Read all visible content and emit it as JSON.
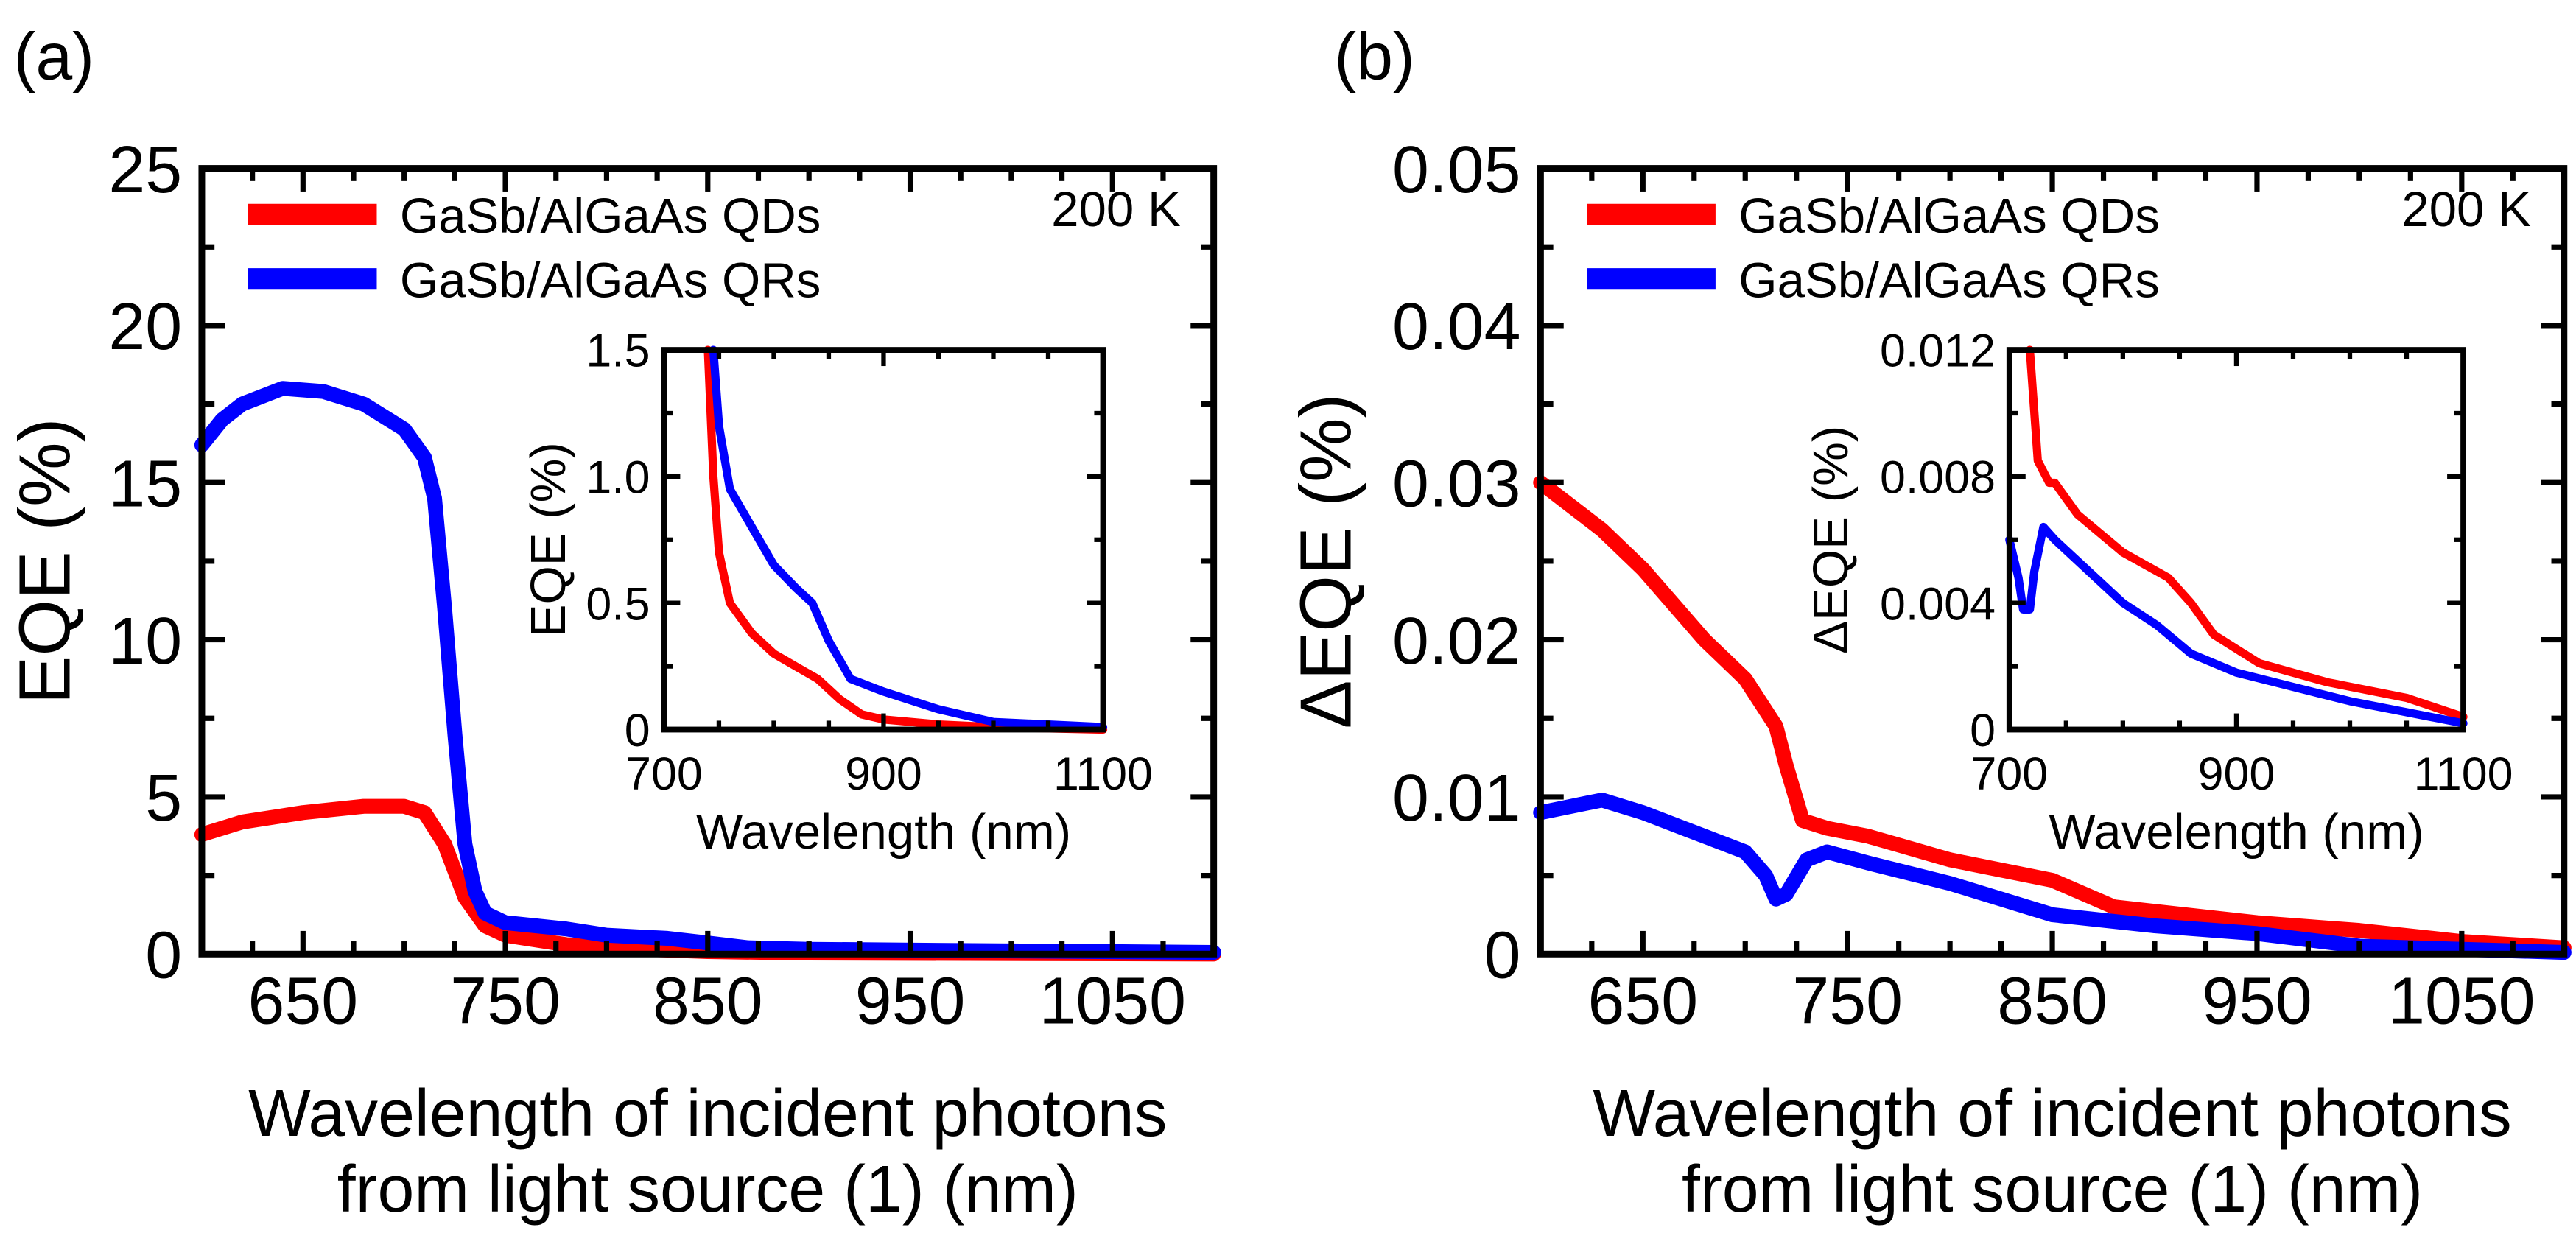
{
  "chart_data": [
    {
      "panel_label": "(a)",
      "type": "line",
      "annotation": "200 K",
      "xlabel_line1": "Wavelength of incident photons",
      "xlabel_line2": "from light source (1) (nm)",
      "ylabel": "EQE (%)",
      "xlim": [
        600,
        1100
      ],
      "ylim": [
        0,
        25
      ],
      "xticks": [
        650,
        750,
        850,
        950,
        1050
      ],
      "yticks": [
        0,
        5,
        10,
        15,
        20,
        25
      ],
      "legend_placement": "top-left",
      "grid": false,
      "series": [
        {
          "name": "GaSb/AlGaAs QDs",
          "color": "#ff0000",
          "x": [
            600,
            620,
            650,
            680,
            700,
            710,
            720,
            730,
            740,
            750,
            780,
            800,
            850,
            900,
            1100
          ],
          "y": [
            3.8,
            4.2,
            4.5,
            4.7,
            4.7,
            4.5,
            3.5,
            1.8,
            0.9,
            0.6,
            0.3,
            0.2,
            0.08,
            0.03,
            0
          ]
        },
        {
          "name": "GaSb/AlGaAs QRs",
          "color": "#0000ff",
          "x": [
            600,
            610,
            620,
            640,
            660,
            680,
            700,
            710,
            715,
            720,
            725,
            730,
            735,
            740,
            750,
            780,
            800,
            830,
            850,
            870,
            900,
            1000,
            1100
          ],
          "y": [
            16.2,
            17.0,
            17.5,
            18.0,
            17.9,
            17.5,
            16.7,
            15.8,
            14.5,
            11,
            7,
            3.5,
            2,
            1.3,
            1.0,
            0.8,
            0.6,
            0.5,
            0.35,
            0.2,
            0.15,
            0.1,
            0.05
          ]
        }
      ],
      "inset": {
        "xlabel": "Wavelength (nm)",
        "ylabel": "EQE (%)",
        "xlim": [
          700,
          1100
        ],
        "ylim": [
          0,
          1.5
        ],
        "xticks": [
          700,
          900,
          1100
        ],
        "yticks": [
          0,
          0.5,
          1.0,
          1.5
        ],
        "ytick_labels": [
          "0",
          "0.5",
          "1.0",
          "1.5"
        ],
        "series": [
          {
            "color": "#ff0000",
            "x": [
              740,
              745,
              750,
              760,
              780,
              800,
              820,
              840,
              860,
              880,
              900,
              950,
              1000,
              1100
            ],
            "y": [
              1.5,
              1.0,
              0.7,
              0.5,
              0.38,
              0.3,
              0.25,
              0.2,
              0.12,
              0.06,
              0.04,
              0.02,
              0.01,
              0
            ]
          },
          {
            "color": "#0000ff",
            "x": [
              745,
              750,
              760,
              780,
              800,
              820,
              835,
              850,
              870,
              900,
              950,
              1000,
              1050,
              1100
            ],
            "y": [
              1.5,
              1.2,
              0.95,
              0.8,
              0.65,
              0.56,
              0.5,
              0.35,
              0.2,
              0.15,
              0.08,
              0.03,
              0.02,
              0.01
            ]
          }
        ]
      }
    },
    {
      "panel_label": "(b)",
      "type": "line",
      "annotation": "200 K",
      "xlabel_line1": "Wavelength of incident photons",
      "xlabel_line2": "from light source (1) (nm)",
      "ylabel": "ΔEQE (%)",
      "xlim": [
        600,
        1100
      ],
      "ylim": [
        0,
        0.05
      ],
      "xticks": [
        650,
        750,
        850,
        950,
        1050
      ],
      "yticks": [
        0,
        0.01,
        0.02,
        0.03,
        0.04,
        0.05
      ],
      "ytick_labels": [
        "0",
        "0.01",
        "0.02",
        "0.03",
        "0.04",
        "0.05"
      ],
      "legend_placement": "top-left",
      "grid": false,
      "series": [
        {
          "name": "GaSb/AlGaAs QDs",
          "color": "#ff0000",
          "x": [
            600,
            630,
            650,
            680,
            700,
            715,
            720,
            728,
            740,
            760,
            800,
            850,
            880,
            950,
            1000,
            1050,
            1100
          ],
          "y": [
            0.03,
            0.027,
            0.0245,
            0.02,
            0.0175,
            0.0145,
            0.012,
            0.0085,
            0.008,
            0.0075,
            0.006,
            0.0047,
            0.003,
            0.002,
            0.0015,
            0.0008,
            0.0004
          ]
        },
        {
          "name": "GaSb/AlGaAs QRs",
          "color": "#0000ff",
          "x": [
            600,
            630,
            650,
            680,
            700,
            710,
            715,
            720,
            730,
            740,
            760,
            800,
            850,
            900,
            950,
            1000,
            1100
          ],
          "y": [
            0.009,
            0.0098,
            0.009,
            0.0075,
            0.0065,
            0.005,
            0.0035,
            0.0038,
            0.006,
            0.0065,
            0.0058,
            0.0045,
            0.0025,
            0.0018,
            0.0013,
            0.0005,
            0.0001
          ]
        }
      ],
      "inset": {
        "xlabel": "Wavelength (nm)",
        "ylabel": "ΔEQE (%)",
        "xlim": [
          700,
          1100
        ],
        "ylim": [
          0,
          0.012
        ],
        "xticks": [
          700,
          900,
          1100
        ],
        "yticks": [
          0,
          0.004,
          0.008,
          0.012
        ],
        "ytick_labels": [
          "0",
          "0.004",
          "0.008",
          "0.012"
        ],
        "series": [
          {
            "color": "#ff0000",
            "x": [
              718,
              725,
              735,
              740,
              760,
              800,
              840,
              860,
              880,
              920,
              980,
              1050,
              1100
            ],
            "y": [
              0.012,
              0.0085,
              0.0078,
              0.0078,
              0.0068,
              0.0056,
              0.0048,
              0.004,
              0.003,
              0.0021,
              0.0015,
              0.001,
              0.0004
            ]
          },
          {
            "color": "#0000ff",
            "x": [
              700,
              708,
              712,
              718,
              722,
              730,
              740,
              800,
              830,
              860,
              900,
              1000,
              1100
            ],
            "y": [
              0.006,
              0.0048,
              0.0038,
              0.0038,
              0.005,
              0.0064,
              0.006,
              0.004,
              0.0033,
              0.0024,
              0.0018,
              0.0009,
              0.0002
            ]
          }
        ]
      }
    }
  ]
}
